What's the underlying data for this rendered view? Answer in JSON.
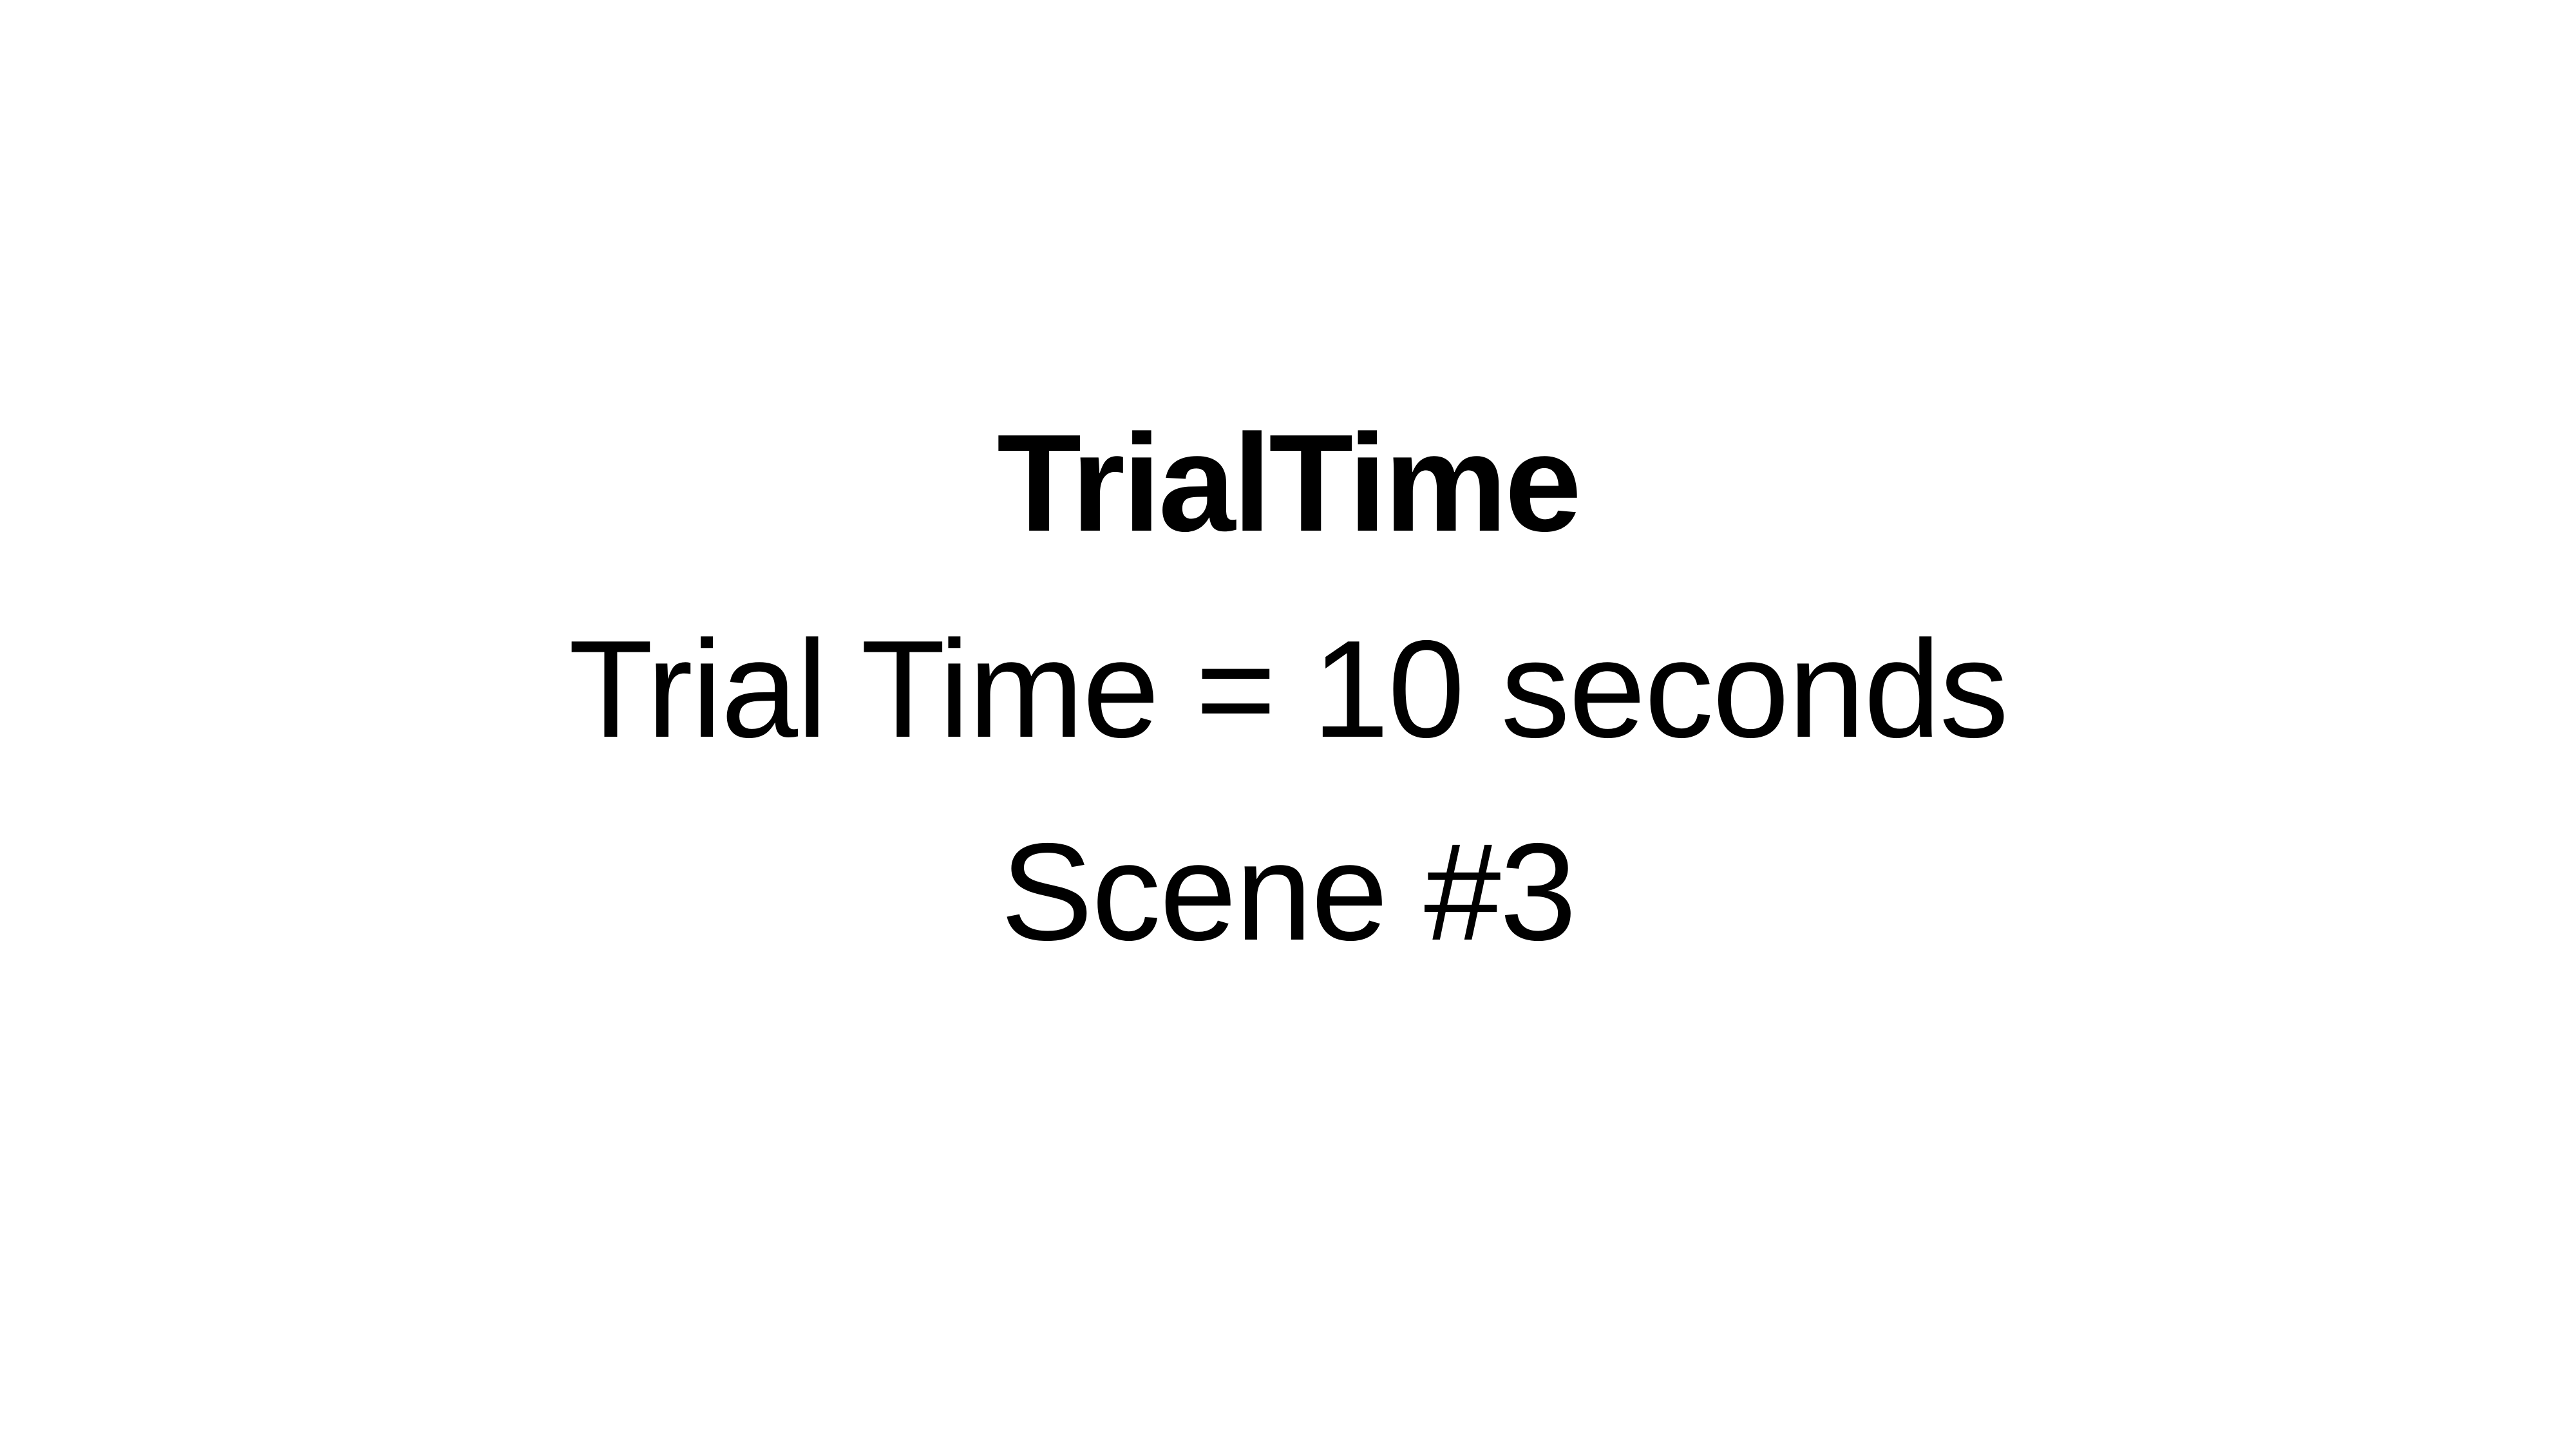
{
  "slide": {
    "title": "TrialTime",
    "trial_time_line": "Trial Time = 10 seconds",
    "scene_line": "Scene #3"
  }
}
